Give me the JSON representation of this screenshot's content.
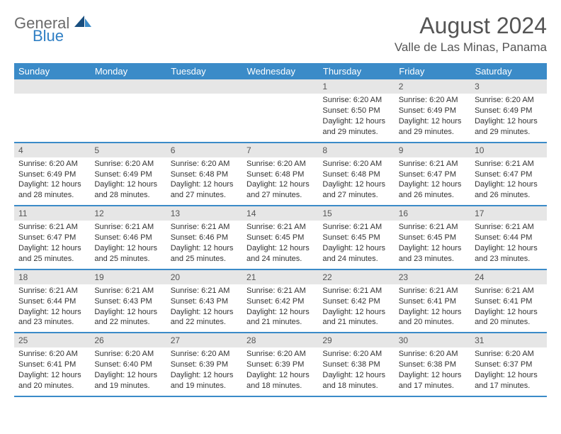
{
  "logo": {
    "general": "General",
    "blue": "Blue"
  },
  "title": "August 2024",
  "location": "Valle de Las Minas, Panama",
  "colors": {
    "header_bg": "#3b8bc8",
    "header_text": "#ffffff",
    "daynum_bg": "#e6e6e6",
    "border": "#3b8bc8",
    "body_text": "#333333",
    "title_text": "#555555"
  },
  "weekdays": [
    "Sunday",
    "Monday",
    "Tuesday",
    "Wednesday",
    "Thursday",
    "Friday",
    "Saturday"
  ],
  "weeks": [
    [
      null,
      null,
      null,
      null,
      {
        "n": "1",
        "sr": "Sunrise: 6:20 AM",
        "ss": "Sunset: 6:50 PM",
        "d1": "Daylight: 12 hours",
        "d2": "and 29 minutes."
      },
      {
        "n": "2",
        "sr": "Sunrise: 6:20 AM",
        "ss": "Sunset: 6:49 PM",
        "d1": "Daylight: 12 hours",
        "d2": "and 29 minutes."
      },
      {
        "n": "3",
        "sr": "Sunrise: 6:20 AM",
        "ss": "Sunset: 6:49 PM",
        "d1": "Daylight: 12 hours",
        "d2": "and 29 minutes."
      }
    ],
    [
      {
        "n": "4",
        "sr": "Sunrise: 6:20 AM",
        "ss": "Sunset: 6:49 PM",
        "d1": "Daylight: 12 hours",
        "d2": "and 28 minutes."
      },
      {
        "n": "5",
        "sr": "Sunrise: 6:20 AM",
        "ss": "Sunset: 6:49 PM",
        "d1": "Daylight: 12 hours",
        "d2": "and 28 minutes."
      },
      {
        "n": "6",
        "sr": "Sunrise: 6:20 AM",
        "ss": "Sunset: 6:48 PM",
        "d1": "Daylight: 12 hours",
        "d2": "and 27 minutes."
      },
      {
        "n": "7",
        "sr": "Sunrise: 6:20 AM",
        "ss": "Sunset: 6:48 PM",
        "d1": "Daylight: 12 hours",
        "d2": "and 27 minutes."
      },
      {
        "n": "8",
        "sr": "Sunrise: 6:20 AM",
        "ss": "Sunset: 6:48 PM",
        "d1": "Daylight: 12 hours",
        "d2": "and 27 minutes."
      },
      {
        "n": "9",
        "sr": "Sunrise: 6:21 AM",
        "ss": "Sunset: 6:47 PM",
        "d1": "Daylight: 12 hours",
        "d2": "and 26 minutes."
      },
      {
        "n": "10",
        "sr": "Sunrise: 6:21 AM",
        "ss": "Sunset: 6:47 PM",
        "d1": "Daylight: 12 hours",
        "d2": "and 26 minutes."
      }
    ],
    [
      {
        "n": "11",
        "sr": "Sunrise: 6:21 AM",
        "ss": "Sunset: 6:47 PM",
        "d1": "Daylight: 12 hours",
        "d2": "and 25 minutes."
      },
      {
        "n": "12",
        "sr": "Sunrise: 6:21 AM",
        "ss": "Sunset: 6:46 PM",
        "d1": "Daylight: 12 hours",
        "d2": "and 25 minutes."
      },
      {
        "n": "13",
        "sr": "Sunrise: 6:21 AM",
        "ss": "Sunset: 6:46 PM",
        "d1": "Daylight: 12 hours",
        "d2": "and 25 minutes."
      },
      {
        "n": "14",
        "sr": "Sunrise: 6:21 AM",
        "ss": "Sunset: 6:45 PM",
        "d1": "Daylight: 12 hours",
        "d2": "and 24 minutes."
      },
      {
        "n": "15",
        "sr": "Sunrise: 6:21 AM",
        "ss": "Sunset: 6:45 PM",
        "d1": "Daylight: 12 hours",
        "d2": "and 24 minutes."
      },
      {
        "n": "16",
        "sr": "Sunrise: 6:21 AM",
        "ss": "Sunset: 6:45 PM",
        "d1": "Daylight: 12 hours",
        "d2": "and 23 minutes."
      },
      {
        "n": "17",
        "sr": "Sunrise: 6:21 AM",
        "ss": "Sunset: 6:44 PM",
        "d1": "Daylight: 12 hours",
        "d2": "and 23 minutes."
      }
    ],
    [
      {
        "n": "18",
        "sr": "Sunrise: 6:21 AM",
        "ss": "Sunset: 6:44 PM",
        "d1": "Daylight: 12 hours",
        "d2": "and 23 minutes."
      },
      {
        "n": "19",
        "sr": "Sunrise: 6:21 AM",
        "ss": "Sunset: 6:43 PM",
        "d1": "Daylight: 12 hours",
        "d2": "and 22 minutes."
      },
      {
        "n": "20",
        "sr": "Sunrise: 6:21 AM",
        "ss": "Sunset: 6:43 PM",
        "d1": "Daylight: 12 hours",
        "d2": "and 22 minutes."
      },
      {
        "n": "21",
        "sr": "Sunrise: 6:21 AM",
        "ss": "Sunset: 6:42 PM",
        "d1": "Daylight: 12 hours",
        "d2": "and 21 minutes."
      },
      {
        "n": "22",
        "sr": "Sunrise: 6:21 AM",
        "ss": "Sunset: 6:42 PM",
        "d1": "Daylight: 12 hours",
        "d2": "and 21 minutes."
      },
      {
        "n": "23",
        "sr": "Sunrise: 6:21 AM",
        "ss": "Sunset: 6:41 PM",
        "d1": "Daylight: 12 hours",
        "d2": "and 20 minutes."
      },
      {
        "n": "24",
        "sr": "Sunrise: 6:21 AM",
        "ss": "Sunset: 6:41 PM",
        "d1": "Daylight: 12 hours",
        "d2": "and 20 minutes."
      }
    ],
    [
      {
        "n": "25",
        "sr": "Sunrise: 6:20 AM",
        "ss": "Sunset: 6:41 PM",
        "d1": "Daylight: 12 hours",
        "d2": "and 20 minutes."
      },
      {
        "n": "26",
        "sr": "Sunrise: 6:20 AM",
        "ss": "Sunset: 6:40 PM",
        "d1": "Daylight: 12 hours",
        "d2": "and 19 minutes."
      },
      {
        "n": "27",
        "sr": "Sunrise: 6:20 AM",
        "ss": "Sunset: 6:39 PM",
        "d1": "Daylight: 12 hours",
        "d2": "and 19 minutes."
      },
      {
        "n": "28",
        "sr": "Sunrise: 6:20 AM",
        "ss": "Sunset: 6:39 PM",
        "d1": "Daylight: 12 hours",
        "d2": "and 18 minutes."
      },
      {
        "n": "29",
        "sr": "Sunrise: 6:20 AM",
        "ss": "Sunset: 6:38 PM",
        "d1": "Daylight: 12 hours",
        "d2": "and 18 minutes."
      },
      {
        "n": "30",
        "sr": "Sunrise: 6:20 AM",
        "ss": "Sunset: 6:38 PM",
        "d1": "Daylight: 12 hours",
        "d2": "and 17 minutes."
      },
      {
        "n": "31",
        "sr": "Sunrise: 6:20 AM",
        "ss": "Sunset: 6:37 PM",
        "d1": "Daylight: 12 hours",
        "d2": "and 17 minutes."
      }
    ]
  ]
}
